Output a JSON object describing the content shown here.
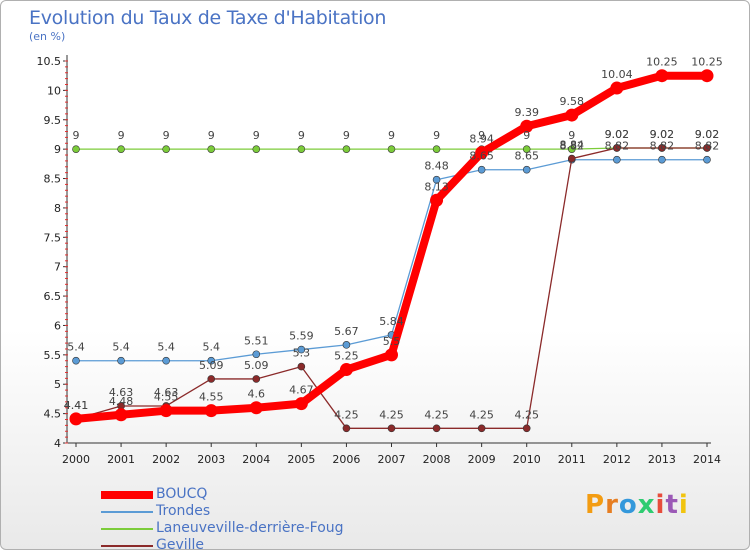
{
  "chart_data": {
    "type": "line",
    "title": "Evolution du Taux de Taxe d'Habitation",
    "ylabel": "(en %)",
    "xlabel": "",
    "x": [
      "2000",
      "2001",
      "2002",
      "2003",
      "2004",
      "2005",
      "2006",
      "2007",
      "2008",
      "2009",
      "2010",
      "2011",
      "2012",
      "2013",
      "2014"
    ],
    "ylim": [
      4,
      10.5
    ],
    "yticks": [
      "4",
      "4.5",
      "5",
      "5.5",
      "6",
      "6.5",
      "7",
      "7.5",
      "8",
      "8.5",
      "9",
      "9.5",
      "10",
      "10.5"
    ],
    "grid": false,
    "legend_position": "bottom-left",
    "series": [
      {
        "name": "BOUCQ",
        "color": "#ff0000",
        "values": [
          4.41,
          4.48,
          4.55,
          4.55,
          4.6,
          4.67,
          5.25,
          5.5,
          8.13,
          8.94,
          9.39,
          9.58,
          10.04,
          10.25,
          10.25
        ],
        "labels": [
          "4.41",
          "4.48",
          "4.55",
          "4.55",
          "4.6",
          "4.67",
          "5.25",
          "5.5",
          "8.13",
          "8.94",
          "9.39",
          "9.58",
          "10.04",
          "10.25",
          "10.25"
        ]
      },
      {
        "name": "Trondes",
        "color": "#5b9bd5",
        "values": [
          5.4,
          5.4,
          5.4,
          5.4,
          5.51,
          5.59,
          5.67,
          5.84,
          8.48,
          8.65,
          8.65,
          8.82,
          8.82,
          8.82,
          8.82
        ],
        "labels": [
          "5.4",
          "5.4",
          "5.4",
          "5.4",
          "5.51",
          "5.59",
          "5.67",
          "5.84",
          "8.48",
          "8.65",
          "8.65",
          "8.82",
          "8.82",
          "8.82",
          "8.82"
        ]
      },
      {
        "name": "Laneuveville-derrière-Foug",
        "color": "#7ccc3a",
        "values": [
          9,
          9,
          9,
          9,
          9,
          9,
          9,
          9,
          9,
          9,
          9,
          9,
          9.02,
          9.02,
          9.02
        ],
        "labels": [
          "9",
          "9",
          "9",
          "9",
          "9",
          "9",
          "9",
          "9",
          "9",
          "9",
          "9",
          "9",
          "9.02",
          "9.02",
          "9.02"
        ]
      },
      {
        "name": "Geville",
        "color": "#8b2a2a",
        "values": [
          4.41,
          4.63,
          4.63,
          5.09,
          5.09,
          5.3,
          4.25,
          4.25,
          4.25,
          4.25,
          4.25,
          8.84,
          9.02,
          9.02,
          9.02
        ],
        "labels": [
          "4.41",
          "4.63",
          "4.63",
          "5.09",
          "5.09",
          "5.3",
          "4.25",
          "4.25",
          "4.25",
          "4.25",
          "4.25",
          "8.84",
          "9.02",
          "9.02",
          "9.02"
        ]
      }
    ]
  },
  "logo": {
    "letters": [
      "P",
      "r",
      "o",
      "x",
      "i",
      "t",
      "i"
    ],
    "colors": [
      "#f39c12",
      "#e67e22",
      "#3498db",
      "#2ecc71",
      "#e74c3c",
      "#9b59b6",
      "#f1c40f"
    ]
  }
}
